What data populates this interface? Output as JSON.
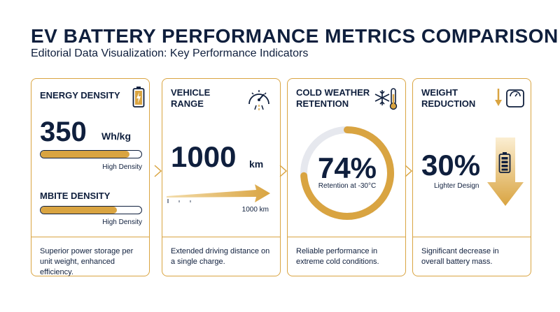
{
  "header": {
    "title": "EV BATTERY PERFORMANCE METRICS COMPARISON",
    "subtitle": "Editorial Data Visualization: Key Performance Indicators"
  },
  "colors": {
    "navy": "#0f1f3d",
    "gold": "#d9a441"
  },
  "cards": [
    {
      "label": "ENERGY DENSITY",
      "icon": "battery-charge-icon",
      "value": "350",
      "unit": "Wh/kg",
      "bar1_fill": 0.88,
      "bar1_caption": "High Density",
      "sub_label": "MBITE DENSITY",
      "bar2_fill": 0.76,
      "bar2_caption": "High Density",
      "description": "Superior power storage per unit weight, enhanced efficiency."
    },
    {
      "label_line1": "VEHICLE",
      "label_line2": "RANGE",
      "icon": "speedometer-icon",
      "value": "1000",
      "unit": "km",
      "arrow_caption": "1000 km",
      "description": "Extended driving distance on a single charge."
    },
    {
      "label_line1": "COLD WEATHER",
      "label_line2": "RETENTION",
      "icon": "snowflake-thermometer-icon",
      "value": "74%",
      "retention_fraction": 0.74,
      "caption": "Retention at -30°C",
      "description": "Reliable performance in extreme cold conditions."
    },
    {
      "label_line1": "WEIGHT",
      "label_line2": "REDUCTION",
      "icon": "scale-down-icon",
      "value": "30%",
      "caption": "Lighter Design",
      "description": "Significant decrease in overall battery mass."
    }
  ]
}
